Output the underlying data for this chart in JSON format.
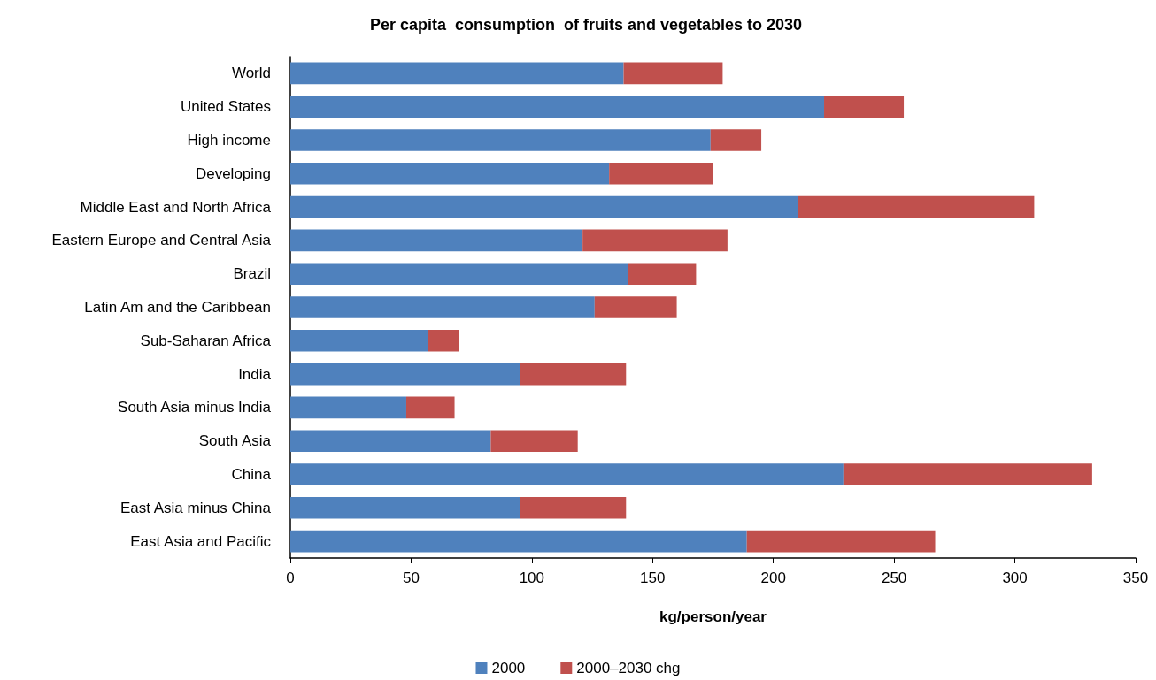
{
  "chart_data": {
    "type": "bar",
    "orientation": "horizontal",
    "stacked": true,
    "title": "Per capita  consumption  of fruits and vegetables to 2030",
    "xlabel": "kg/person/year",
    "categories": [
      "World",
      "United States",
      "High income",
      "Developing",
      "Middle East and North Africa",
      "Eastern Europe and Central Asia",
      "Brazil",
      "Latin Am and the Caribbean",
      "Sub-Saharan Africa",
      "India",
      "South Asia minus India",
      "South Asia",
      "China",
      "East Asia minus China",
      "East Asia and Pacific"
    ],
    "series": [
      {
        "name": "2000",
        "color": "#4f81bd",
        "values": [
          138,
          221,
          174,
          132,
          210,
          121,
          140,
          126,
          57,
          95,
          48,
          83,
          229,
          95,
          189
        ]
      },
      {
        "name": "2000–2030 chg",
        "color": "#c0504d",
        "values": [
          41,
          33,
          21,
          43,
          98,
          60,
          28,
          34,
          13,
          44,
          20,
          36,
          103,
          44,
          78
        ]
      }
    ],
    "xlim": [
      0,
      350
    ],
    "xticks": [
      0,
      50,
      100,
      150,
      200,
      250,
      300,
      350
    ],
    "grid": false,
    "legend": "bottom"
  }
}
